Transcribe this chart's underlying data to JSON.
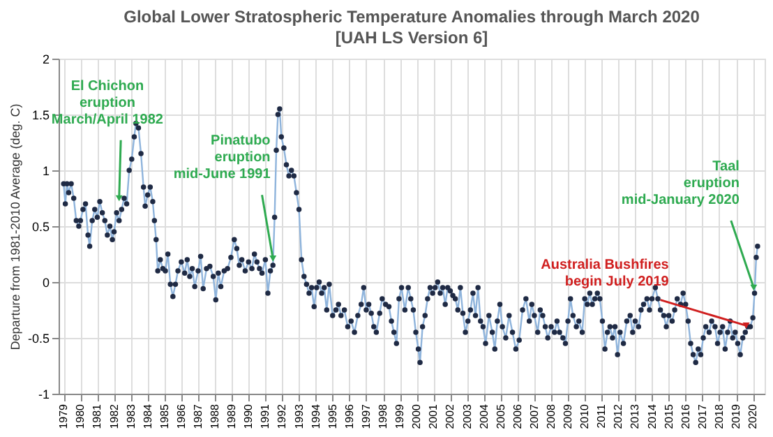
{
  "chart_data": {
    "type": "line",
    "title": "Global Lower Stratospheric Temperature Anomalies through March 2020",
    "subtitle": "[UAH LS Version 6]",
    "ylabel": "Departure from 1981-2010 Average (deg. C)",
    "x": [
      1979.0,
      1979.1,
      1979.2,
      1979.3,
      1979.45,
      1979.6,
      1979.75,
      1979.9,
      1980.0,
      1980.15,
      1980.3,
      1980.45,
      1980.55,
      1980.7,
      1980.85,
      1981.0,
      1981.15,
      1981.3,
      1981.45,
      1981.6,
      1981.75,
      1981.9,
      1982.0,
      1982.15,
      1982.3,
      1982.45,
      1982.6,
      1982.75,
      1982.9,
      1983.05,
      1983.2,
      1983.3,
      1983.45,
      1983.6,
      1983.75,
      1983.85,
      1984.0,
      1984.15,
      1984.3,
      1984.4,
      1984.5,
      1984.6,
      1984.75,
      1984.9,
      1985.05,
      1985.2,
      1985.35,
      1985.5,
      1985.65,
      1985.8,
      1986.0,
      1986.2,
      1986.35,
      1986.5,
      1986.65,
      1986.8,
      1987.0,
      1987.15,
      1987.3,
      1987.5,
      1987.7,
      1987.9,
      1988.05,
      1988.2,
      1988.35,
      1988.55,
      1988.75,
      1988.95,
      1989.15,
      1989.3,
      1989.45,
      1989.6,
      1989.8,
      1990.0,
      1990.2,
      1990.35,
      1990.5,
      1990.65,
      1990.8,
      1991.0,
      1991.15,
      1991.3,
      1991.45,
      1991.55,
      1991.65,
      1991.75,
      1991.85,
      1991.95,
      1992.1,
      1992.25,
      1992.4,
      1992.55,
      1992.7,
      1992.85,
      1993.0,
      1993.15,
      1993.3,
      1993.45,
      1993.6,
      1993.75,
      1993.9,
      1994.05,
      1994.2,
      1994.35,
      1994.5,
      1994.65,
      1994.8,
      1995.0,
      1995.2,
      1995.35,
      1995.5,
      1995.7,
      1995.9,
      1996.1,
      1996.3,
      1996.5,
      1996.7,
      1996.85,
      1997.0,
      1997.15,
      1997.3,
      1997.45,
      1997.6,
      1997.8,
      1997.95,
      1998.15,
      1998.35,
      1998.5,
      1998.65,
      1998.8,
      1998.95,
      1999.1,
      1999.3,
      1999.5,
      1999.65,
      1999.8,
      1999.95,
      2000.1,
      2000.2,
      2000.35,
      2000.5,
      2000.65,
      2000.8,
      2000.95,
      2001.1,
      2001.25,
      2001.4,
      2001.55,
      2001.7,
      2001.85,
      2002.0,
      2002.15,
      2002.3,
      2002.45,
      2002.6,
      2002.75,
      2002.9,
      2003.05,
      2003.2,
      2003.35,
      2003.5,
      2003.65,
      2003.8,
      2003.95,
      2004.1,
      2004.3,
      2004.5,
      2004.65,
      2004.8,
      2004.95,
      2005.1,
      2005.3,
      2005.5,
      2005.7,
      2005.9,
      2006.1,
      2006.3,
      2006.5,
      2006.7,
      2006.85,
      2007.0,
      2007.2,
      2007.35,
      2007.5,
      2007.65,
      2007.8,
      2008.0,
      2008.2,
      2008.35,
      2008.5,
      2008.7,
      2008.85,
      2009.0,
      2009.15,
      2009.3,
      2009.5,
      2009.65,
      2009.85,
      2010.0,
      2010.15,
      2010.3,
      2010.45,
      2010.6,
      2010.75,
      2010.9,
      2011.05,
      2011.2,
      2011.35,
      2011.5,
      2011.65,
      2011.8,
      2011.95,
      2012.1,
      2012.3,
      2012.5,
      2012.7,
      2012.85,
      2013.0,
      2013.2,
      2013.35,
      2013.5,
      2013.7,
      2013.85,
      2014.0,
      2014.2,
      2014.35,
      2014.5,
      2014.7,
      2014.85,
      2015.0,
      2015.2,
      2015.35,
      2015.5,
      2015.7,
      2015.85,
      2016.0,
      2016.15,
      2016.3,
      2016.45,
      2016.6,
      2016.75,
      2016.9,
      2017.05,
      2017.2,
      2017.4,
      2017.55,
      2017.75,
      2017.9,
      2018.05,
      2018.2,
      2018.35,
      2018.5,
      2018.65,
      2018.8,
      2018.95,
      2019.1,
      2019.25,
      2019.4,
      2019.55,
      2019.7,
      2019.85,
      2020.0,
      2020.1,
      2020.2,
      2020.28
    ],
    "series": [
      {
        "color": "#1f2a44",
        "values": [
          0.88,
          0.7,
          0.88,
          0.8,
          0.88,
          0.75,
          0.55,
          0.5,
          0.55,
          0.65,
          0.7,
          0.42,
          0.32,
          0.55,
          0.65,
          0.58,
          0.72,
          0.62,
          0.55,
          0.42,
          0.5,
          0.38,
          0.45,
          0.62,
          0.55,
          0.65,
          0.75,
          0.7,
          1.0,
          1.1,
          1.3,
          1.42,
          1.38,
          1.15,
          0.85,
          0.68,
          0.78,
          0.85,
          0.72,
          0.55,
          0.38,
          0.1,
          0.2,
          0.12,
          0.1,
          0.25,
          -0.02,
          -0.13,
          -0.02,
          0.1,
          0.18,
          0.08,
          0.2,
          0.05,
          0.12,
          -0.04,
          0.1,
          0.23,
          -0.06,
          0.12,
          0.14,
          0.05,
          -0.16,
          0.08,
          -0.04,
          0.1,
          0.12,
          0.22,
          0.38,
          0.3,
          0.15,
          0.2,
          0.1,
          0.18,
          0.12,
          0.25,
          0.18,
          0.12,
          0.08,
          0.2,
          -0.1,
          0.1,
          0.15,
          0.58,
          1.18,
          1.5,
          1.55,
          1.3,
          1.2,
          1.05,
          0.95,
          1.0,
          0.95,
          0.8,
          0.65,
          0.2,
          0.05,
          -0.02,
          -0.1,
          -0.05,
          -0.22,
          -0.05,
          0.0,
          -0.1,
          -0.05,
          -0.25,
          -0.02,
          -0.3,
          -0.25,
          -0.2,
          -0.3,
          -0.25,
          -0.4,
          -0.35,
          -0.45,
          -0.3,
          -0.2,
          -0.05,
          -0.25,
          -0.2,
          -0.28,
          -0.4,
          -0.45,
          -0.28,
          -0.15,
          -0.2,
          -0.22,
          -0.35,
          -0.45,
          -0.55,
          -0.15,
          -0.05,
          -0.25,
          -0.05,
          -0.15,
          -0.25,
          -0.45,
          -0.6,
          -0.72,
          -0.4,
          -0.3,
          -0.15,
          -0.05,
          -0.1,
          -0.05,
          0.0,
          -0.1,
          -0.05,
          -0.2,
          -0.05,
          -0.08,
          -0.12,
          -0.15,
          -0.25,
          -0.05,
          -0.28,
          -0.45,
          -0.35,
          -0.25,
          -0.1,
          -0.3,
          -0.05,
          -0.35,
          -0.4,
          -0.55,
          -0.3,
          -0.45,
          -0.6,
          -0.35,
          -0.2,
          -0.4,
          -0.5,
          -0.3,
          -0.45,
          -0.6,
          -0.52,
          -0.25,
          -0.15,
          -0.35,
          -0.2,
          -0.3,
          -0.45,
          -0.25,
          -0.3,
          -0.4,
          -0.5,
          -0.4,
          -0.45,
          -0.35,
          -0.45,
          -0.5,
          -0.55,
          -0.35,
          -0.15,
          -0.3,
          -0.4,
          -0.35,
          -0.45,
          -0.15,
          -0.2,
          -0.1,
          -0.2,
          -0.15,
          -0.1,
          -0.15,
          -0.35,
          -0.6,
          -0.45,
          -0.4,
          -0.5,
          -0.4,
          -0.65,
          -0.45,
          -0.55,
          -0.35,
          -0.3,
          -0.45,
          -0.35,
          -0.4,
          -0.25,
          -0.2,
          -0.15,
          -0.25,
          -0.15,
          -0.05,
          -0.15,
          -0.25,
          -0.3,
          -0.4,
          -0.3,
          -0.35,
          -0.25,
          -0.15,
          -0.2,
          -0.1,
          -0.2,
          -0.35,
          -0.55,
          -0.65,
          -0.72,
          -0.6,
          -0.65,
          -0.5,
          -0.4,
          -0.45,
          -0.35,
          -0.4,
          -0.55,
          -0.45,
          -0.4,
          -0.6,
          -0.45,
          -0.35,
          -0.5,
          -0.45,
          -0.55,
          -0.65,
          -0.5,
          -0.45,
          -0.4,
          -0.4,
          -0.32,
          -0.1,
          0.22,
          0.32
        ]
      }
    ],
    "xlim": [
      1978.7,
      2020.7
    ],
    "xticks": [
      1979,
      1980,
      1981,
      1982,
      1983,
      1984,
      1985,
      1986,
      1987,
      1988,
      1989,
      1990,
      1991,
      1992,
      1993,
      1994,
      1995,
      1996,
      1997,
      1998,
      1999,
      2000,
      2001,
      2002,
      2003,
      2004,
      2005,
      2006,
      2007,
      2008,
      2009,
      2010,
      2011,
      2012,
      2013,
      2014,
      2015,
      2016,
      2017,
      2018,
      2019,
      2020
    ],
    "ylim": [
      -1,
      2
    ],
    "yticks": [
      -1,
      -0.5,
      0,
      0.5,
      1,
      1.5,
      2
    ],
    "grid": true,
    "marker": "circle",
    "line_style": "solid",
    "annotations": [
      {
        "text": "El Chichon\neruption\nMarch/April 1982",
        "x": 1982.3,
        "y": 0.72
      },
      {
        "text": "Pinatubo\neruption\nmid-June 1991",
        "x": 1991.45,
        "y": 0.18
      },
      {
        "text": "Australia Bushfires\nbegin July 2019",
        "x": 2019.6,
        "y": -0.42
      },
      {
        "text": "Taal\neruption\nmid-January 2020",
        "x": 2020.05,
        "y": -0.08
      }
    ]
  }
}
